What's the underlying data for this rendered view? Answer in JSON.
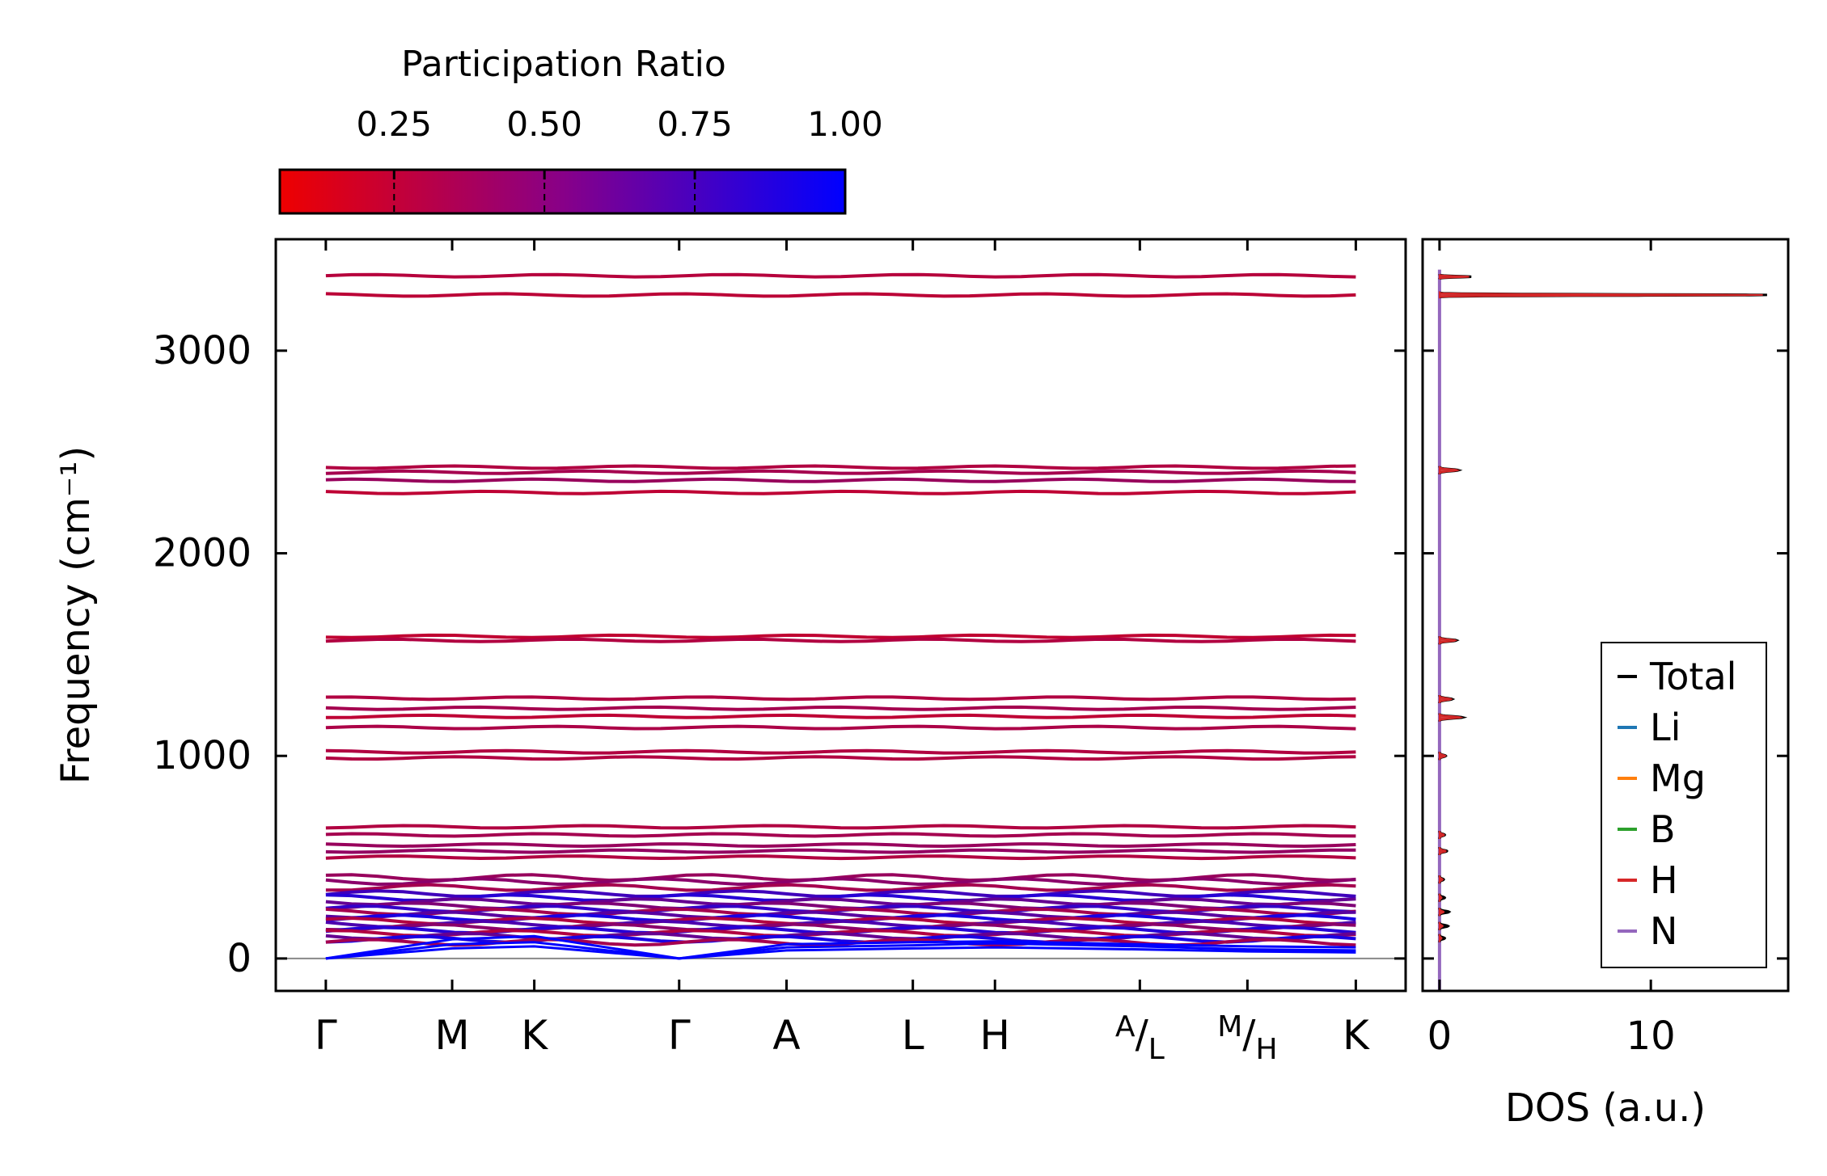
{
  "colorbar": {
    "label": "Participation Ratio",
    "ticks": [
      "0.25",
      "0.50",
      "0.75",
      "1.00"
    ],
    "tick_values": [
      0.25,
      0.5,
      0.75,
      1.0
    ],
    "range": [
      0.06,
      1.0
    ],
    "color_low": "#ee0000",
    "color_high": "#0000ff"
  },
  "chart_data": [
    {
      "type": "line",
      "name": "phonon band structure",
      "title": "",
      "xlabel": "",
      "ylabel": "Frequency (cm⁻¹)",
      "ylim": [
        -160,
        3550
      ],
      "yticks": [
        0,
        1000,
        2000,
        3000
      ],
      "ytick_labels": [
        "0",
        "1000",
        "2000",
        "3000"
      ],
      "kpoint_labels": [
        "Γ",
        "M",
        "K",
        "Γ",
        "A",
        "L",
        "H",
        "A/L",
        "M/H",
        "K"
      ],
      "kpoint_positions": [
        0,
        0.606,
        1.0,
        1.695,
        2.21,
        2.816,
        3.21,
        3.905,
        4.421,
        4.941
      ],
      "xlim": [
        -0.24,
        5.18
      ],
      "zero_line": 0,
      "flat_bands": [
        {
          "freq": 3370,
          "pr": 0.28
        },
        {
          "freq": 3275,
          "pr": 0.26
        },
        {
          "freq": 2425,
          "pr": 0.3
        },
        {
          "freq": 2400,
          "pr": 0.35
        },
        {
          "freq": 2360,
          "pr": 0.4
        },
        {
          "freq": 2300,
          "pr": 0.25
        },
        {
          "freq": 1590,
          "pr": 0.24
        },
        {
          "freq": 1570,
          "pr": 0.3
        },
        {
          "freq": 1285,
          "pr": 0.3
        },
        {
          "freq": 1235,
          "pr": 0.35
        },
        {
          "freq": 1195,
          "pr": 0.25
        },
        {
          "freq": 1140,
          "pr": 0.32
        },
        {
          "freq": 1020,
          "pr": 0.3
        },
        {
          "freq": 990,
          "pr": 0.3
        },
        {
          "freq": 650,
          "pr": 0.3
        },
        {
          "freq": 610,
          "pr": 0.35
        },
        {
          "freq": 560,
          "pr": 0.4
        },
        {
          "freq": 530,
          "pr": 0.42
        },
        {
          "freq": 500,
          "pr": 0.3
        },
        {
          "freq": 400,
          "pr": 0.4
        },
        {
          "freq": 380,
          "pr": 0.45
        },
        {
          "freq": 350,
          "pr": 0.35
        },
        {
          "freq": 320,
          "pr": 0.75
        },
        {
          "freq": 300,
          "pr": 0.85
        },
        {
          "freq": 280,
          "pr": 0.6
        },
        {
          "freq": 260,
          "pr": 0.5
        },
        {
          "freq": 245,
          "pr": 0.8
        },
        {
          "freq": 230,
          "pr": 0.35
        },
        {
          "freq": 215,
          "pr": 0.65
        },
        {
          "freq": 200,
          "pr": 0.9
        },
        {
          "freq": 185,
          "pr": 0.3
        },
        {
          "freq": 170,
          "pr": 0.7
        },
        {
          "freq": 155,
          "pr": 0.45
        },
        {
          "freq": 140,
          "pr": 0.85
        },
        {
          "freq": 125,
          "pr": 0.3
        },
        {
          "freq": 110,
          "pr": 0.6
        },
        {
          "freq": 95,
          "pr": 0.9
        },
        {
          "freq": 80,
          "pr": 0.35
        }
      ],
      "acoustic_bands": [
        {
          "points": [
            [
              0,
              0
            ],
            [
              0.606,
              95
            ],
            [
              1.0,
              110
            ],
            [
              1.695,
              0
            ],
            [
              2.21,
              70
            ],
            [
              2.816,
              80
            ],
            [
              3.21,
              85
            ],
            [
              3.905,
              70
            ],
            [
              4.421,
              60
            ],
            [
              4.941,
              55
            ]
          ],
          "pr": 1.0
        },
        {
          "points": [
            [
              0,
              0
            ],
            [
              0.606,
              70
            ],
            [
              1.0,
              80
            ],
            [
              1.695,
              0
            ],
            [
              2.21,
              55
            ],
            [
              2.816,
              65
            ],
            [
              3.21,
              75
            ],
            [
              3.905,
              60
            ],
            [
              4.421,
              45
            ],
            [
              4.941,
              40
            ]
          ],
          "pr": 1.0
        },
        {
          "points": [
            [
              0,
              0
            ],
            [
              0.606,
              50
            ],
            [
              1.0,
              60
            ],
            [
              1.695,
              0
            ],
            [
              2.21,
              40
            ],
            [
              2.816,
              50
            ],
            [
              3.21,
              55
            ],
            [
              3.905,
              45
            ],
            [
              4.421,
              35
            ],
            [
              4.941,
              30
            ]
          ],
          "pr": 1.0
        }
      ]
    },
    {
      "type": "line",
      "name": "density of states",
      "xlabel": "DOS (a.u.)",
      "ylabel": "",
      "xlim": [
        -0.8,
        16.5
      ],
      "xticks": [
        0,
        10
      ],
      "xtick_labels": [
        "0",
        "10"
      ],
      "ylim": [
        -160,
        3550
      ],
      "legend": [
        "Total",
        "Li",
        "Mg",
        "B",
        "H",
        "N"
      ],
      "legend_position": "lower-right",
      "series_colors": {
        "Total": "#000000",
        "Li": "#1f77b4",
        "Mg": "#ff7f0e",
        "B": "#2ca02c",
        "H": "#d62728",
        "N": "#9467bd"
      },
      "peaks": [
        {
          "freq": 3365,
          "total": 1.5,
          "H": 1.4
        },
        {
          "freq": 3275,
          "total": 15.5,
          "H": 15.3
        },
        {
          "freq": 2410,
          "total": 0.9,
          "H": 0.85
        },
        {
          "freq": 1570,
          "total": 0.8,
          "H": 0.75
        },
        {
          "freq": 1280,
          "total": 0.6,
          "H": 0.55
        },
        {
          "freq": 1190,
          "total": 1.1,
          "H": 1.0
        },
        {
          "freq": 1000,
          "total": 0.3,
          "H": 0.28
        },
        {
          "freq": 610,
          "total": 0.25,
          "H": 0.22
        },
        {
          "freq": 530,
          "total": 0.35,
          "H": 0.3
        },
        {
          "freq": 390,
          "total": 0.2,
          "H": 0.15
        },
        {
          "freq": 300,
          "total": 0.25,
          "H": 0.1
        },
        {
          "freq": 230,
          "total": 0.45,
          "H": 0.2
        },
        {
          "freq": 160,
          "total": 0.4,
          "H": 0.15
        },
        {
          "freq": 100,
          "total": 0.25,
          "H": 0.1
        }
      ]
    }
  ]
}
